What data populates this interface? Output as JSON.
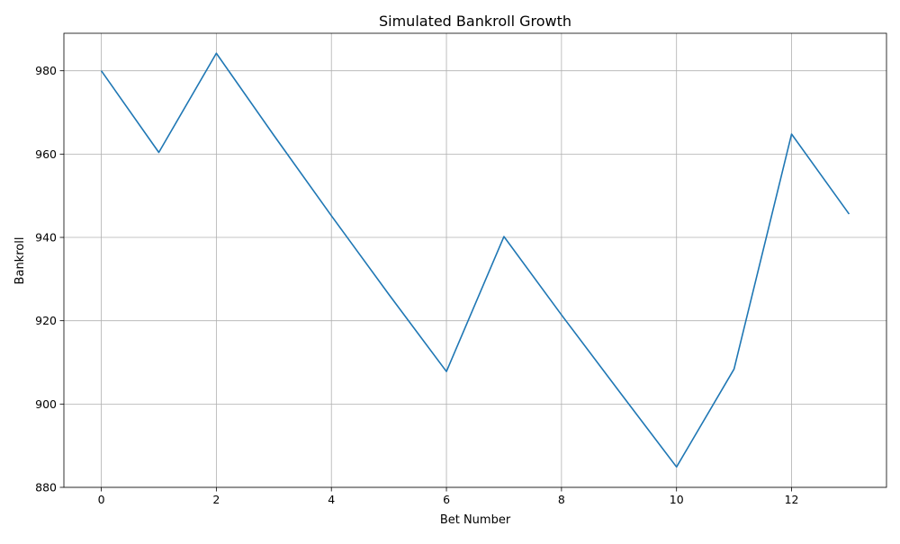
{
  "chart_data": {
    "type": "line",
    "title": "Simulated Bankroll Growth",
    "xlabel": "Bet Number",
    "ylabel": "Bankroll",
    "xlim": [
      -0.65,
      13.65
    ],
    "ylim": [
      880,
      989
    ],
    "x_ticks": [
      0,
      2,
      4,
      6,
      8,
      10,
      12
    ],
    "y_ticks": [
      880,
      900,
      920,
      940,
      960,
      980
    ],
    "grid": true,
    "legend": "none",
    "series": [
      {
        "color": "#1f77b4",
        "x": [
          0,
          1,
          2,
          3,
          4,
          5,
          6,
          7,
          8,
          9,
          10,
          11,
          12,
          13
        ],
        "values": [
          980,
          960.4,
          984.2,
          964.5,
          945.2,
          926.3,
          907.8,
          940.2,
          921.4,
          903.1,
          884.9,
          908.4,
          964.8,
          945.6
        ]
      }
    ]
  },
  "colors": {
    "line": "#1f77b4",
    "grid": "#b0b0b0",
    "axis": "#000000",
    "background": "#ffffff"
  }
}
